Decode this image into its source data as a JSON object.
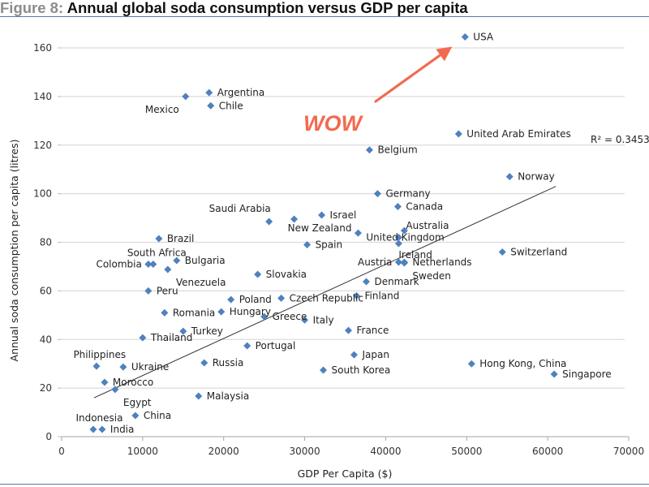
{
  "figure": {
    "prefix": "Figure 8:",
    "title": "Annual global soda consumption versus GDP per capita"
  },
  "chart_data": {
    "type": "scatter",
    "title": "Annual global soda consumption versus GDP per capita",
    "xlabel": "GDP Per Capita ($)",
    "ylabel": "Annual soda consumption per capita (litres)",
    "xlim": [
      0,
      70000
    ],
    "ylim": [
      0,
      160
    ],
    "xticks": [
      0,
      10000,
      20000,
      30000,
      40000,
      50000,
      60000,
      70000
    ],
    "yticks": [
      0,
      20,
      40,
      60,
      80,
      100,
      120,
      140,
      160
    ],
    "grid": "horizontal",
    "marker_color": "#4f81bd",
    "trendline": {
      "type": "linear",
      "x": [
        4000,
        61000
      ],
      "y": [
        16,
        103
      ],
      "r_squared_label": "R² = 0.3453"
    },
    "annotation": {
      "text": "WOW",
      "color": "#f26a50",
      "arrow_points_to": "USA"
    },
    "points": [
      {
        "label": "USA",
        "x": 49800,
        "y": 164.5,
        "anchor": "right"
      },
      {
        "label": "Argentina",
        "x": 18200,
        "y": 141.6,
        "anchor": "right"
      },
      {
        "label": "Mexico",
        "x": 15300,
        "y": 140,
        "anchor": "left-below"
      },
      {
        "label": "Chile",
        "x": 18400,
        "y": 136.2,
        "anchor": "right"
      },
      {
        "label": "United Arab Emirates",
        "x": 49000,
        "y": 124.6,
        "anchor": "right"
      },
      {
        "label": "Belgium",
        "x": 38000,
        "y": 118,
        "anchor": "right"
      },
      {
        "label": "Norway",
        "x": 55300,
        "y": 107,
        "anchor": "right"
      },
      {
        "label": "Germany",
        "x": 39000,
        "y": 100,
        "anchor": "right"
      },
      {
        "label": "Canada",
        "x": 41500,
        "y": 94.7,
        "anchor": "right"
      },
      {
        "label": "Saudi Arabia",
        "x": 25600,
        "y": 88.5,
        "anchor": "above-left"
      },
      {
        "label": "",
        "x": 28700,
        "y": 89.5,
        "anchor": "none"
      },
      {
        "label": "Israel",
        "x": 32100,
        "y": 91.2,
        "anchor": "right"
      },
      {
        "label": "New Zealand",
        "x": 36600,
        "y": 83.8,
        "anchor": "left-above"
      },
      {
        "label": "Australia",
        "x": 42300,
        "y": 84.8,
        "anchor": "right-above"
      },
      {
        "label": "United Kingdom",
        "x": 41600,
        "y": 82,
        "anchor": "left-over"
      },
      {
        "label": "Ireland",
        "x": 41600,
        "y": 79.5,
        "anchor": "below"
      },
      {
        "label": "Brazil",
        "x": 12000,
        "y": 81.5,
        "anchor": "right"
      },
      {
        "label": "Spain",
        "x": 30300,
        "y": 79,
        "anchor": "right"
      },
      {
        "label": "Switzerland",
        "x": 54400,
        "y": 76,
        "anchor": "right"
      },
      {
        "label": "South Africa",
        "x": 11300,
        "y": 71,
        "anchor": "above"
      },
      {
        "label": "Colombia",
        "x": 10700,
        "y": 71,
        "anchor": "left"
      },
      {
        "label": "Bulgaria",
        "x": 14200,
        "y": 72.5,
        "anchor": "right"
      },
      {
        "label": "Venezuela",
        "x": 13100,
        "y": 68.8,
        "anchor": "right-below"
      },
      {
        "label": "Austria",
        "x": 41600,
        "y": 71.8,
        "anchor": "left"
      },
      {
        "label": "Netherlands",
        "x": 42300,
        "y": 71.8,
        "anchor": "right"
      },
      {
        "label": "Sweden",
        "x": 42300,
        "y": 71.5,
        "anchor": "right-below"
      },
      {
        "label": "Slovakia",
        "x": 24200,
        "y": 66.8,
        "anchor": "right"
      },
      {
        "label": "Denmark",
        "x": 37600,
        "y": 63.8,
        "anchor": "right"
      },
      {
        "label": "Peru",
        "x": 10700,
        "y": 60,
        "anchor": "right"
      },
      {
        "label": "Finland",
        "x": 36400,
        "y": 58,
        "anchor": "right"
      },
      {
        "label": "Poland",
        "x": 20900,
        "y": 56.4,
        "anchor": "right"
      },
      {
        "label": "Czech Republic",
        "x": 27100,
        "y": 57,
        "anchor": "right"
      },
      {
        "label": "Romania",
        "x": 12700,
        "y": 51,
        "anchor": "right"
      },
      {
        "label": "Hungary",
        "x": 19700,
        "y": 51.4,
        "anchor": "right"
      },
      {
        "label": "Greece",
        "x": 25000,
        "y": 49.4,
        "anchor": "right"
      },
      {
        "label": "Italy",
        "x": 30000,
        "y": 48,
        "anchor": "right"
      },
      {
        "label": "Turkey",
        "x": 15000,
        "y": 43.4,
        "anchor": "right"
      },
      {
        "label": "France",
        "x": 35400,
        "y": 43.7,
        "anchor": "right"
      },
      {
        "label": "Thailand",
        "x": 10000,
        "y": 40.7,
        "anchor": "right"
      },
      {
        "label": "Portugal",
        "x": 22900,
        "y": 37.4,
        "anchor": "right"
      },
      {
        "label": "Japan",
        "x": 36100,
        "y": 33.7,
        "anchor": "right"
      },
      {
        "label": "Russia",
        "x": 17600,
        "y": 30.4,
        "anchor": "right"
      },
      {
        "label": "Hong Kong, China",
        "x": 50600,
        "y": 30,
        "anchor": "right"
      },
      {
        "label": "Philippines",
        "x": 4300,
        "y": 29,
        "anchor": "above"
      },
      {
        "label": "Ukraine",
        "x": 7600,
        "y": 28.7,
        "anchor": "right"
      },
      {
        "label": "South Korea",
        "x": 32300,
        "y": 27.4,
        "anchor": "right"
      },
      {
        "label": "Singapore",
        "x": 60800,
        "y": 25.7,
        "anchor": "right"
      },
      {
        "label": "Morocco",
        "x": 5300,
        "y": 22.4,
        "anchor": "right"
      },
      {
        "label": "Egypt",
        "x": 6600,
        "y": 19.4,
        "anchor": "right-below"
      },
      {
        "label": "Malaysia",
        "x": 16900,
        "y": 16.7,
        "anchor": "right"
      },
      {
        "label": "China",
        "x": 9100,
        "y": 8.7,
        "anchor": "right"
      },
      {
        "label": "Indonesia",
        "x": 3900,
        "y": 3,
        "anchor": "above"
      },
      {
        "label": "India",
        "x": 5000,
        "y": 3,
        "anchor": "right"
      }
    ]
  }
}
